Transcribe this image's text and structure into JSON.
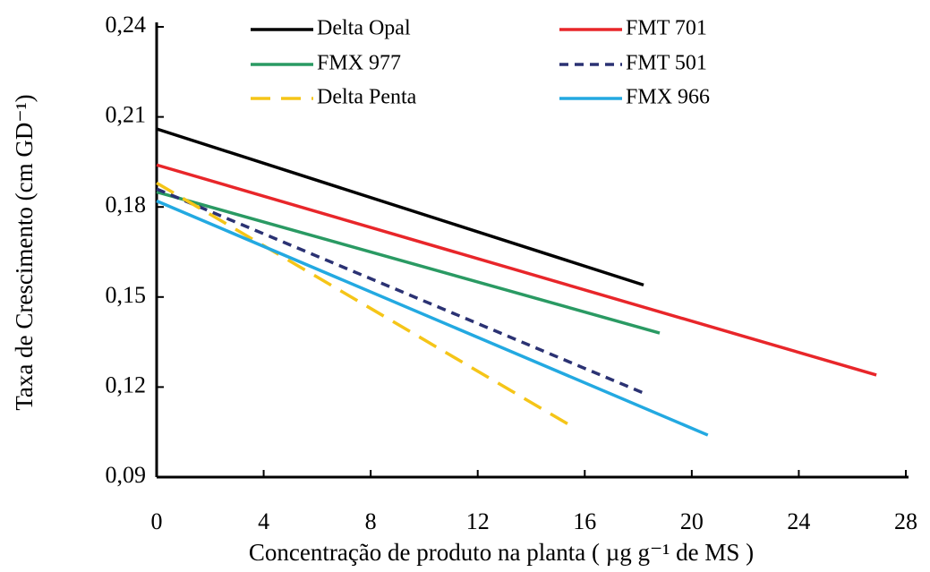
{
  "chart_data": {
    "type": "line",
    "xlabel": "Concentração de produto na planta ( µg g⁻¹ de MS )",
    "ylabel": "Taxa de Crescimento (cm GD⁻¹)",
    "xlim": [
      0,
      28
    ],
    "xticks": [
      0,
      4,
      8,
      12,
      16,
      20,
      24,
      28
    ],
    "ylim": [
      0.09,
      0.24
    ],
    "yticks": [
      {
        "value": 0.09,
        "label": "0,09"
      },
      {
        "value": 0.12,
        "label": "0,12"
      },
      {
        "value": 0.15,
        "label": "0,15"
      },
      {
        "value": 0.18,
        "label": "0,18"
      },
      {
        "value": 0.21,
        "label": "0,21"
      },
      {
        "value": 0.24,
        "label": "0,24"
      }
    ],
    "series": [
      {
        "name": "Delta Opal",
        "color": "#000000",
        "dashed": false,
        "x": [
          0,
          18.2
        ],
        "values": [
          0.206,
          0.154
        ]
      },
      {
        "name": "FMT 701",
        "color": "#e8262a",
        "dashed": false,
        "x": [
          0,
          26.9
        ],
        "values": [
          0.194,
          0.124
        ]
      },
      {
        "name": "FMX 977",
        "color": "#2a9a63",
        "dashed": false,
        "x": [
          0,
          18.8
        ],
        "values": [
          0.185,
          0.138
        ]
      },
      {
        "name": "FMT 501",
        "color": "#2b3273",
        "dashed": true,
        "x": [
          0,
          18.2
        ],
        "values": [
          0.186,
          0.118
        ]
      },
      {
        "name": "Delta Penta",
        "color": "#f5c518",
        "dashed": true,
        "x": [
          0,
          15.5
        ],
        "values": [
          0.188,
          0.107
        ]
      },
      {
        "name": "FMX 966",
        "color": "#23a9e1",
        "dashed": false,
        "x": [
          0,
          20.6
        ],
        "values": [
          0.182,
          0.104
        ]
      }
    ]
  }
}
